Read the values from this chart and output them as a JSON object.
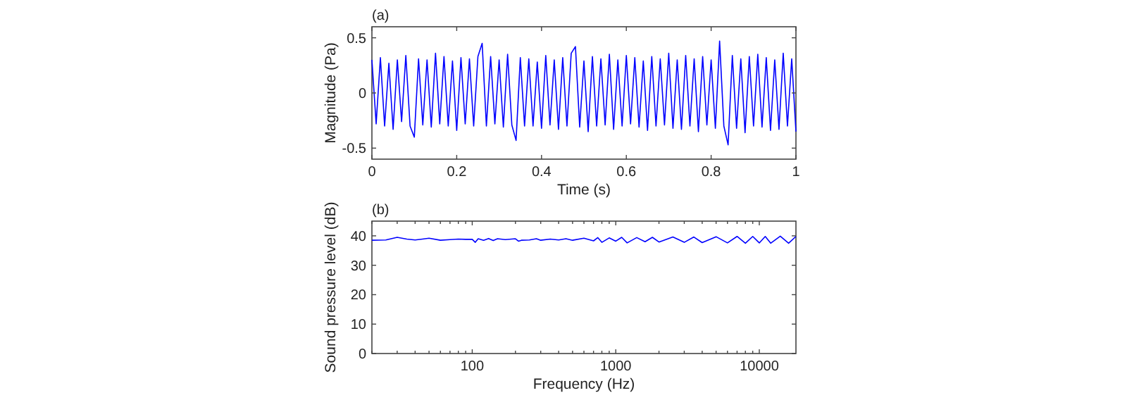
{
  "chart_data": [
    {
      "type": "line",
      "title": "(a)",
      "xlabel": "Time (s)",
      "ylabel": "Magnitude (Pa)",
      "xlim": [
        0,
        1
      ],
      "ylim": [
        -0.6,
        0.6
      ],
      "xticks": [
        0,
        0.2,
        0.4,
        0.6,
        0.8,
        1
      ],
      "yticks": [
        -0.5,
        0,
        0.5
      ],
      "grid": false,
      "series": [
        {
          "color": "#0000ff",
          "x": [
            0,
            0.01,
            0.02,
            0.03,
            0.04,
            0.05,
            0.06,
            0.07,
            0.08,
            0.09,
            0.1,
            0.11,
            0.12,
            0.13,
            0.14,
            0.15,
            0.16,
            0.17,
            0.18,
            0.19,
            0.2,
            0.21,
            0.22,
            0.23,
            0.24,
            0.25,
            0.26,
            0.27,
            0.28,
            0.29,
            0.3,
            0.31,
            0.32,
            0.33,
            0.34,
            0.35,
            0.36,
            0.37,
            0.38,
            0.39,
            0.4,
            0.41,
            0.42,
            0.43,
            0.44,
            0.45,
            0.46,
            0.47,
            0.48,
            0.49,
            0.5,
            0.51,
            0.52,
            0.53,
            0.54,
            0.55,
            0.56,
            0.57,
            0.58,
            0.59,
            0.6,
            0.61,
            0.62,
            0.63,
            0.64,
            0.65,
            0.66,
            0.67,
            0.68,
            0.69,
            0.7,
            0.71,
            0.72,
            0.73,
            0.74,
            0.75,
            0.76,
            0.77,
            0.78,
            0.79,
            0.8,
            0.81,
            0.82,
            0.83,
            0.84,
            0.85,
            0.86,
            0.87,
            0.88,
            0.89,
            0.9,
            0.91,
            0.92,
            0.93,
            0.94,
            0.95,
            0.96,
            0.97,
            0.98,
            0.99,
            1
          ],
          "values": [
            0.3,
            -0.28,
            0.32,
            -0.3,
            0.27,
            -0.33,
            0.3,
            -0.26,
            0.34,
            -0.3,
            -0.4,
            0.31,
            -0.29,
            0.3,
            -0.31,
            0.36,
            -0.28,
            0.33,
            -0.3,
            0.29,
            -0.34,
            0.32,
            -0.28,
            0.31,
            -0.3,
            0.33,
            0.45,
            -0.3,
            0.33,
            -0.28,
            0.3,
            -0.31,
            0.35,
            -0.29,
            -0.43,
            0.32,
            -0.3,
            0.31,
            -0.3,
            0.28,
            -0.32,
            0.34,
            -0.29,
            0.3,
            -0.33,
            0.32,
            -0.3,
            0.36,
            0.42,
            -0.31,
            0.29,
            -0.35,
            0.33,
            -0.3,
            0.31,
            -0.29,
            0.35,
            -0.33,
            0.3,
            -0.3,
            0.34,
            -0.28,
            0.32,
            -0.31,
            0.29,
            -0.34,
            0.33,
            -0.3,
            0.31,
            -0.29,
            0.36,
            -0.32,
            0.3,
            -0.33,
            0.34,
            -0.3,
            0.31,
            -0.35,
            0.33,
            -0.29,
            0.3,
            -0.32,
            0.47,
            -0.3,
            -0.47,
            0.34,
            -0.32,
            0.31,
            -0.36,
            0.33,
            -0.3,
            0.35,
            -0.31,
            0.32,
            -0.34,
            0.3,
            -0.33,
            0.36,
            -0.3,
            0.31,
            -0.35
          ]
        }
      ]
    },
    {
      "type": "line",
      "title": "(b)",
      "xlabel": "Frequency (Hz)",
      "ylabel": "Sound pressure level (dB)",
      "log": "x",
      "xlim": [
        20,
        18000
      ],
      "ylim": [
        0,
        45
      ],
      "xticks": [
        {
          "value": 20,
          "label": null
        },
        {
          "value": 30,
          "label": null
        },
        {
          "value": 40,
          "label": null
        },
        {
          "value": 50,
          "label": null
        },
        {
          "value": 60,
          "label": null
        },
        {
          "value": 70,
          "label": null
        },
        {
          "value": 80,
          "label": null
        },
        {
          "value": 90,
          "label": null
        },
        100,
        {
          "value": 200,
          "label": null
        },
        {
          "value": 300,
          "label": null
        },
        {
          "value": 400,
          "label": null
        },
        {
          "value": 500,
          "label": null
        },
        {
          "value": 600,
          "label": null
        },
        {
          "value": 700,
          "label": null
        },
        {
          "value": 800,
          "label": null
        },
        {
          "value": 900,
          "label": null
        },
        1000,
        {
          "value": 2000,
          "label": null
        },
        {
          "value": 3000,
          "label": null
        },
        {
          "value": 4000,
          "label": null
        },
        {
          "value": 5000,
          "label": null
        },
        {
          "value": 6000,
          "label": null
        },
        {
          "value": 7000,
          "label": null
        },
        {
          "value": 8000,
          "label": null
        },
        {
          "value": 9000,
          "label": null
        },
        10000
      ],
      "yticks": [
        0,
        10,
        20,
        30,
        40
      ],
      "grid": false,
      "series": [
        {
          "color": "#0000ff",
          "x": [
            20,
            25,
            30,
            35,
            40,
            45,
            50,
            60,
            70,
            80,
            90,
            100,
            105,
            110,
            120,
            130,
            140,
            150,
            170,
            200,
            210,
            220,
            250,
            280,
            300,
            350,
            400,
            450,
            500,
            600,
            700,
            750,
            800,
            900,
            1000,
            1100,
            1200,
            1400,
            1600,
            1800,
            2000,
            2500,
            3000,
            3500,
            4000,
            5000,
            6000,
            7000,
            8000,
            9000,
            10000,
            11000,
            12000,
            14000,
            16000,
            18000
          ],
          "values": [
            38.5,
            38.6,
            39.5,
            38.9,
            38.6,
            38.9,
            39.2,
            38.5,
            38.7,
            38.9,
            38.8,
            38.8,
            37.8,
            39,
            38.5,
            39.1,
            38.4,
            39,
            38.7,
            39,
            38.2,
            38.5,
            38.6,
            39,
            38.5,
            38.9,
            38.6,
            39,
            38.5,
            39.2,
            38.3,
            39.4,
            37.8,
            39.3,
            38.2,
            39.5,
            37.6,
            39.4,
            38,
            39.5,
            37.9,
            39.6,
            37.8,
            39.6,
            37.7,
            39.7,
            37.6,
            39.8,
            37.5,
            39.8,
            37.6,
            39.8,
            37.5,
            39.9,
            37.5,
            39.8
          ]
        }
      ]
    }
  ]
}
